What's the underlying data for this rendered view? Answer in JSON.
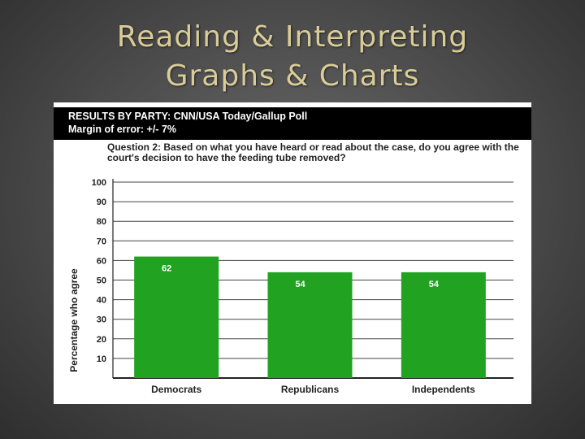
{
  "slide": {
    "title_line1": "Reading & Interpreting",
    "title_line2": "Graphs & Charts"
  },
  "chart_header": {
    "line1": "RESULTS BY PARTY: CNN/USA Today/Gallup Poll",
    "line2": "Margin of error: +/- 7%"
  },
  "question_text": "Question 2: Based on what you have heard or read about the case, do you agree with the court's decision to have the feeding tube removed?",
  "colors": {
    "bar": "#21a321",
    "grid": "#444444",
    "header_bg": "#000000",
    "title": "#d9cc98"
  },
  "chart_data": {
    "type": "bar",
    "title": "RESULTS BY PARTY: CNN/USA Today/Gallup Poll",
    "subtitle": "Margin of error: +/- 7%",
    "categories": [
      "Democrats",
      "Republicans",
      "Independents"
    ],
    "values": [
      62,
      54,
      54
    ],
    "data_labels": [
      "62",
      "54",
      "54"
    ],
    "xlabel": "",
    "ylabel": "Percentage who agree",
    "ylim": [
      0,
      100
    ],
    "yticks": [
      10,
      20,
      30,
      40,
      50,
      60,
      70,
      80,
      90,
      100
    ],
    "grid": true,
    "legend": "none"
  }
}
